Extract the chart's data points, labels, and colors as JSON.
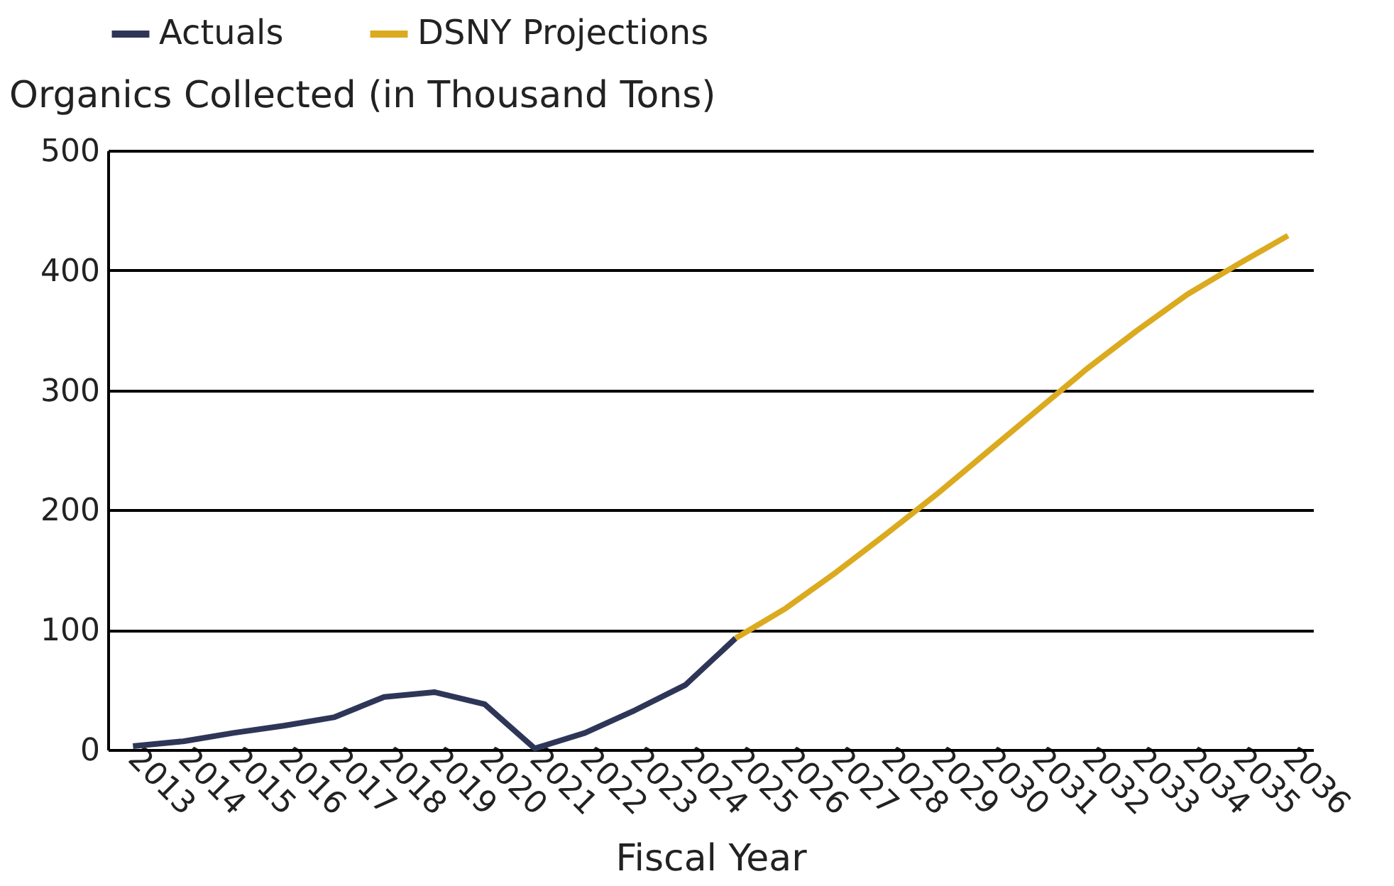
{
  "chart_data": {
    "type": "line",
    "xlabel": "Fiscal Year",
    "ylabel": "Organics Collected (in Thousand Tons)",
    "categories": [
      "2013",
      "2014",
      "2015",
      "2016",
      "2017",
      "2018",
      "2019",
      "2020",
      "2021",
      "2022",
      "2023",
      "2024",
      "2025",
      "2026",
      "2027",
      "2028",
      "2029",
      "2030",
      "2031",
      "2032",
      "2033",
      "2034",
      "2035",
      "2036"
    ],
    "series": [
      {
        "name": "Actuals",
        "color": "#2e3658",
        "values": [
          3,
          7,
          14,
          20,
          27,
          44,
          48,
          38,
          1,
          14,
          33,
          54,
          93,
          null,
          null,
          null,
          null,
          null,
          null,
          null,
          null,
          null,
          null,
          null
        ]
      },
      {
        "name": "DSNY Projections",
        "color": "#dbaa1f",
        "values": [
          null,
          null,
          null,
          null,
          null,
          null,
          null,
          null,
          null,
          null,
          null,
          null,
          93,
          118,
          148,
          180,
          213,
          248,
          283,
          318,
          350,
          380,
          405,
          429
        ]
      }
    ],
    "ylim": [
      0,
      500
    ],
    "yticks": [
      0,
      100,
      200,
      300,
      400,
      500
    ],
    "grid": "y",
    "legend": "top left",
    "marker": "none",
    "line_style": "solid"
  }
}
